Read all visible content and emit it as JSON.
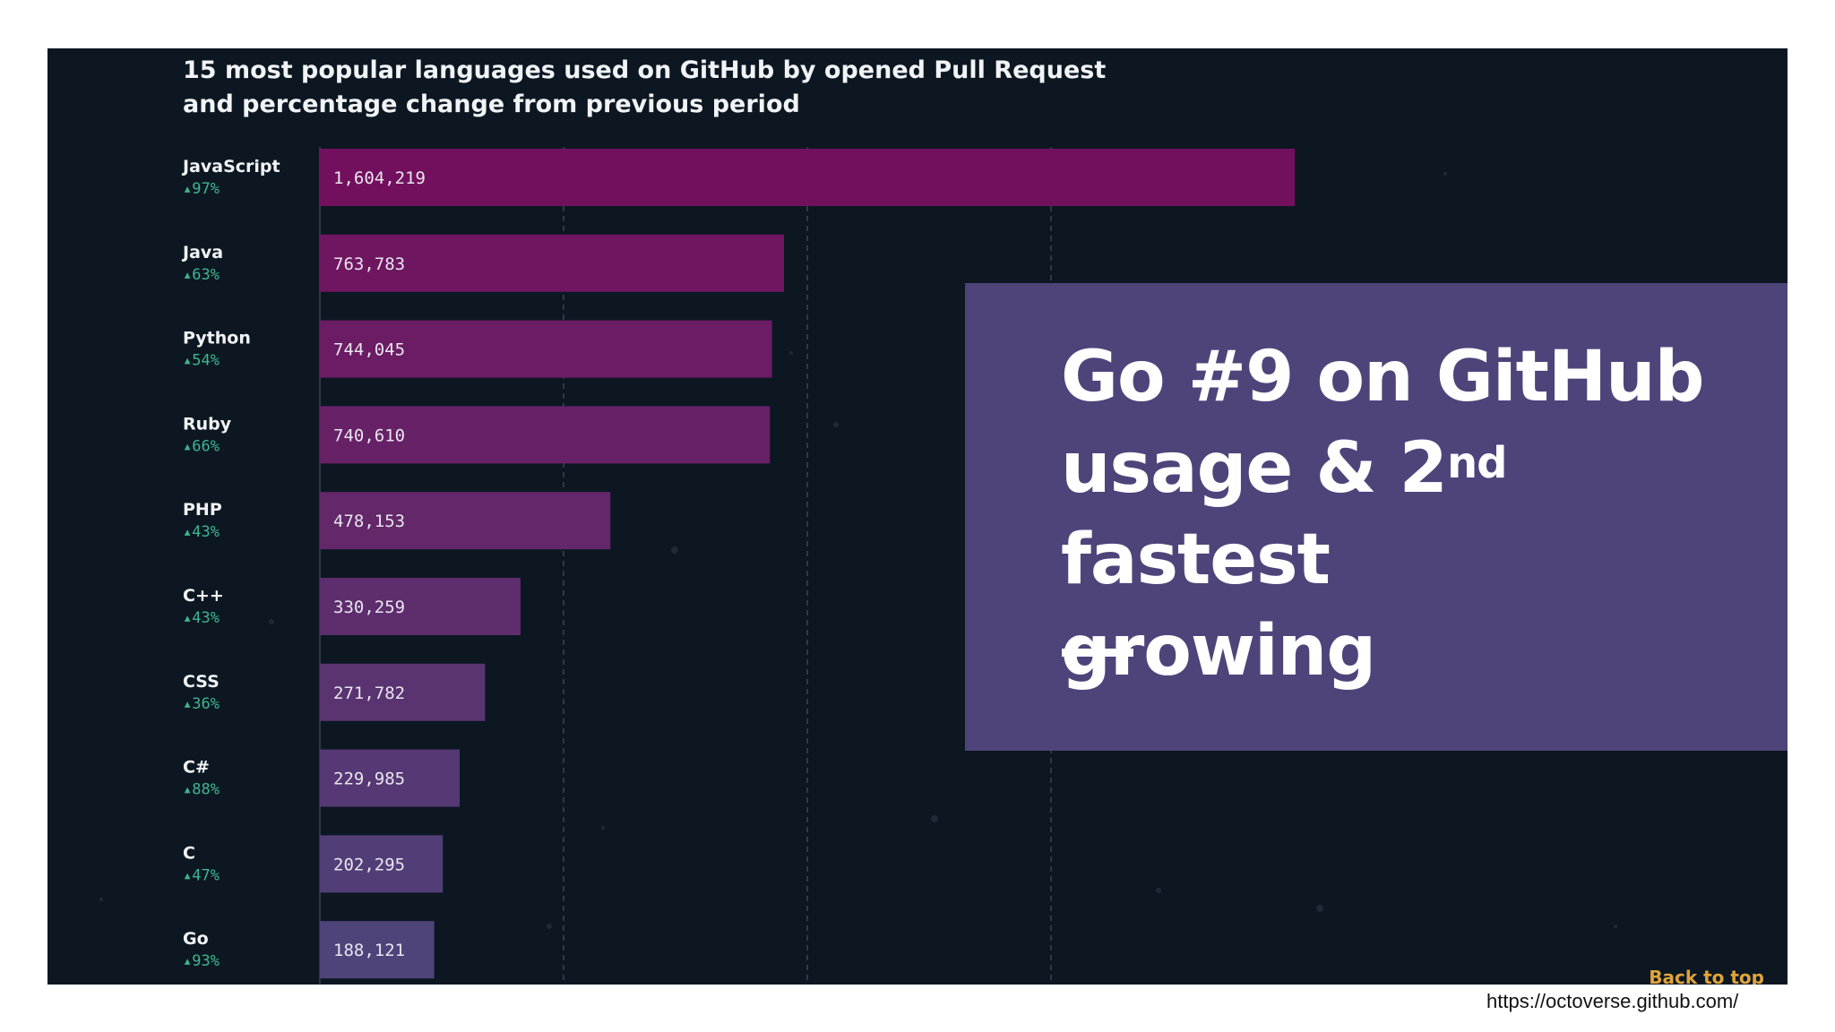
{
  "chart_data": {
    "type": "bar",
    "orientation": "horizontal",
    "title": "15 most popular languages used on GitHub by opened Pull Request and percentage change from previous period",
    "categories": [
      "JavaScript",
      "Java",
      "Python",
      "Ruby",
      "PHP",
      "C++",
      "CSS",
      "C#",
      "C",
      "Go"
    ],
    "values": [
      1604219,
      763783,
      744045,
      740610,
      478153,
      330259,
      271782,
      229985,
      202295,
      188121
    ],
    "value_labels": [
      "1,604,219",
      "763,783",
      "744,045",
      "740,610",
      "478,153",
      "330,259",
      "271,782",
      "229,985",
      "202,295",
      "188,121"
    ],
    "changes": [
      "97%",
      "63%",
      "54%",
      "66%",
      "43%",
      "43%",
      "36%",
      "88%",
      "47%",
      "93%"
    ],
    "xlim": [
      0,
      1604219
    ],
    "grid": true,
    "colors": {
      "top": "#73105e",
      "bottom": "#4e447a"
    }
  },
  "overlay": {
    "line1": "Go #9 on GitHub",
    "line2_a": "usage & 2",
    "line2_sup": "nd",
    "line2_b": " fastest",
    "line3": "growing",
    "background": "#4e447a"
  },
  "back_to_top": "Back to top",
  "source_url": "https://octoverse.github.com/",
  "colors": {
    "background": "#0c1722",
    "change_text": "#3fb58f",
    "link": "#e0a43a"
  }
}
